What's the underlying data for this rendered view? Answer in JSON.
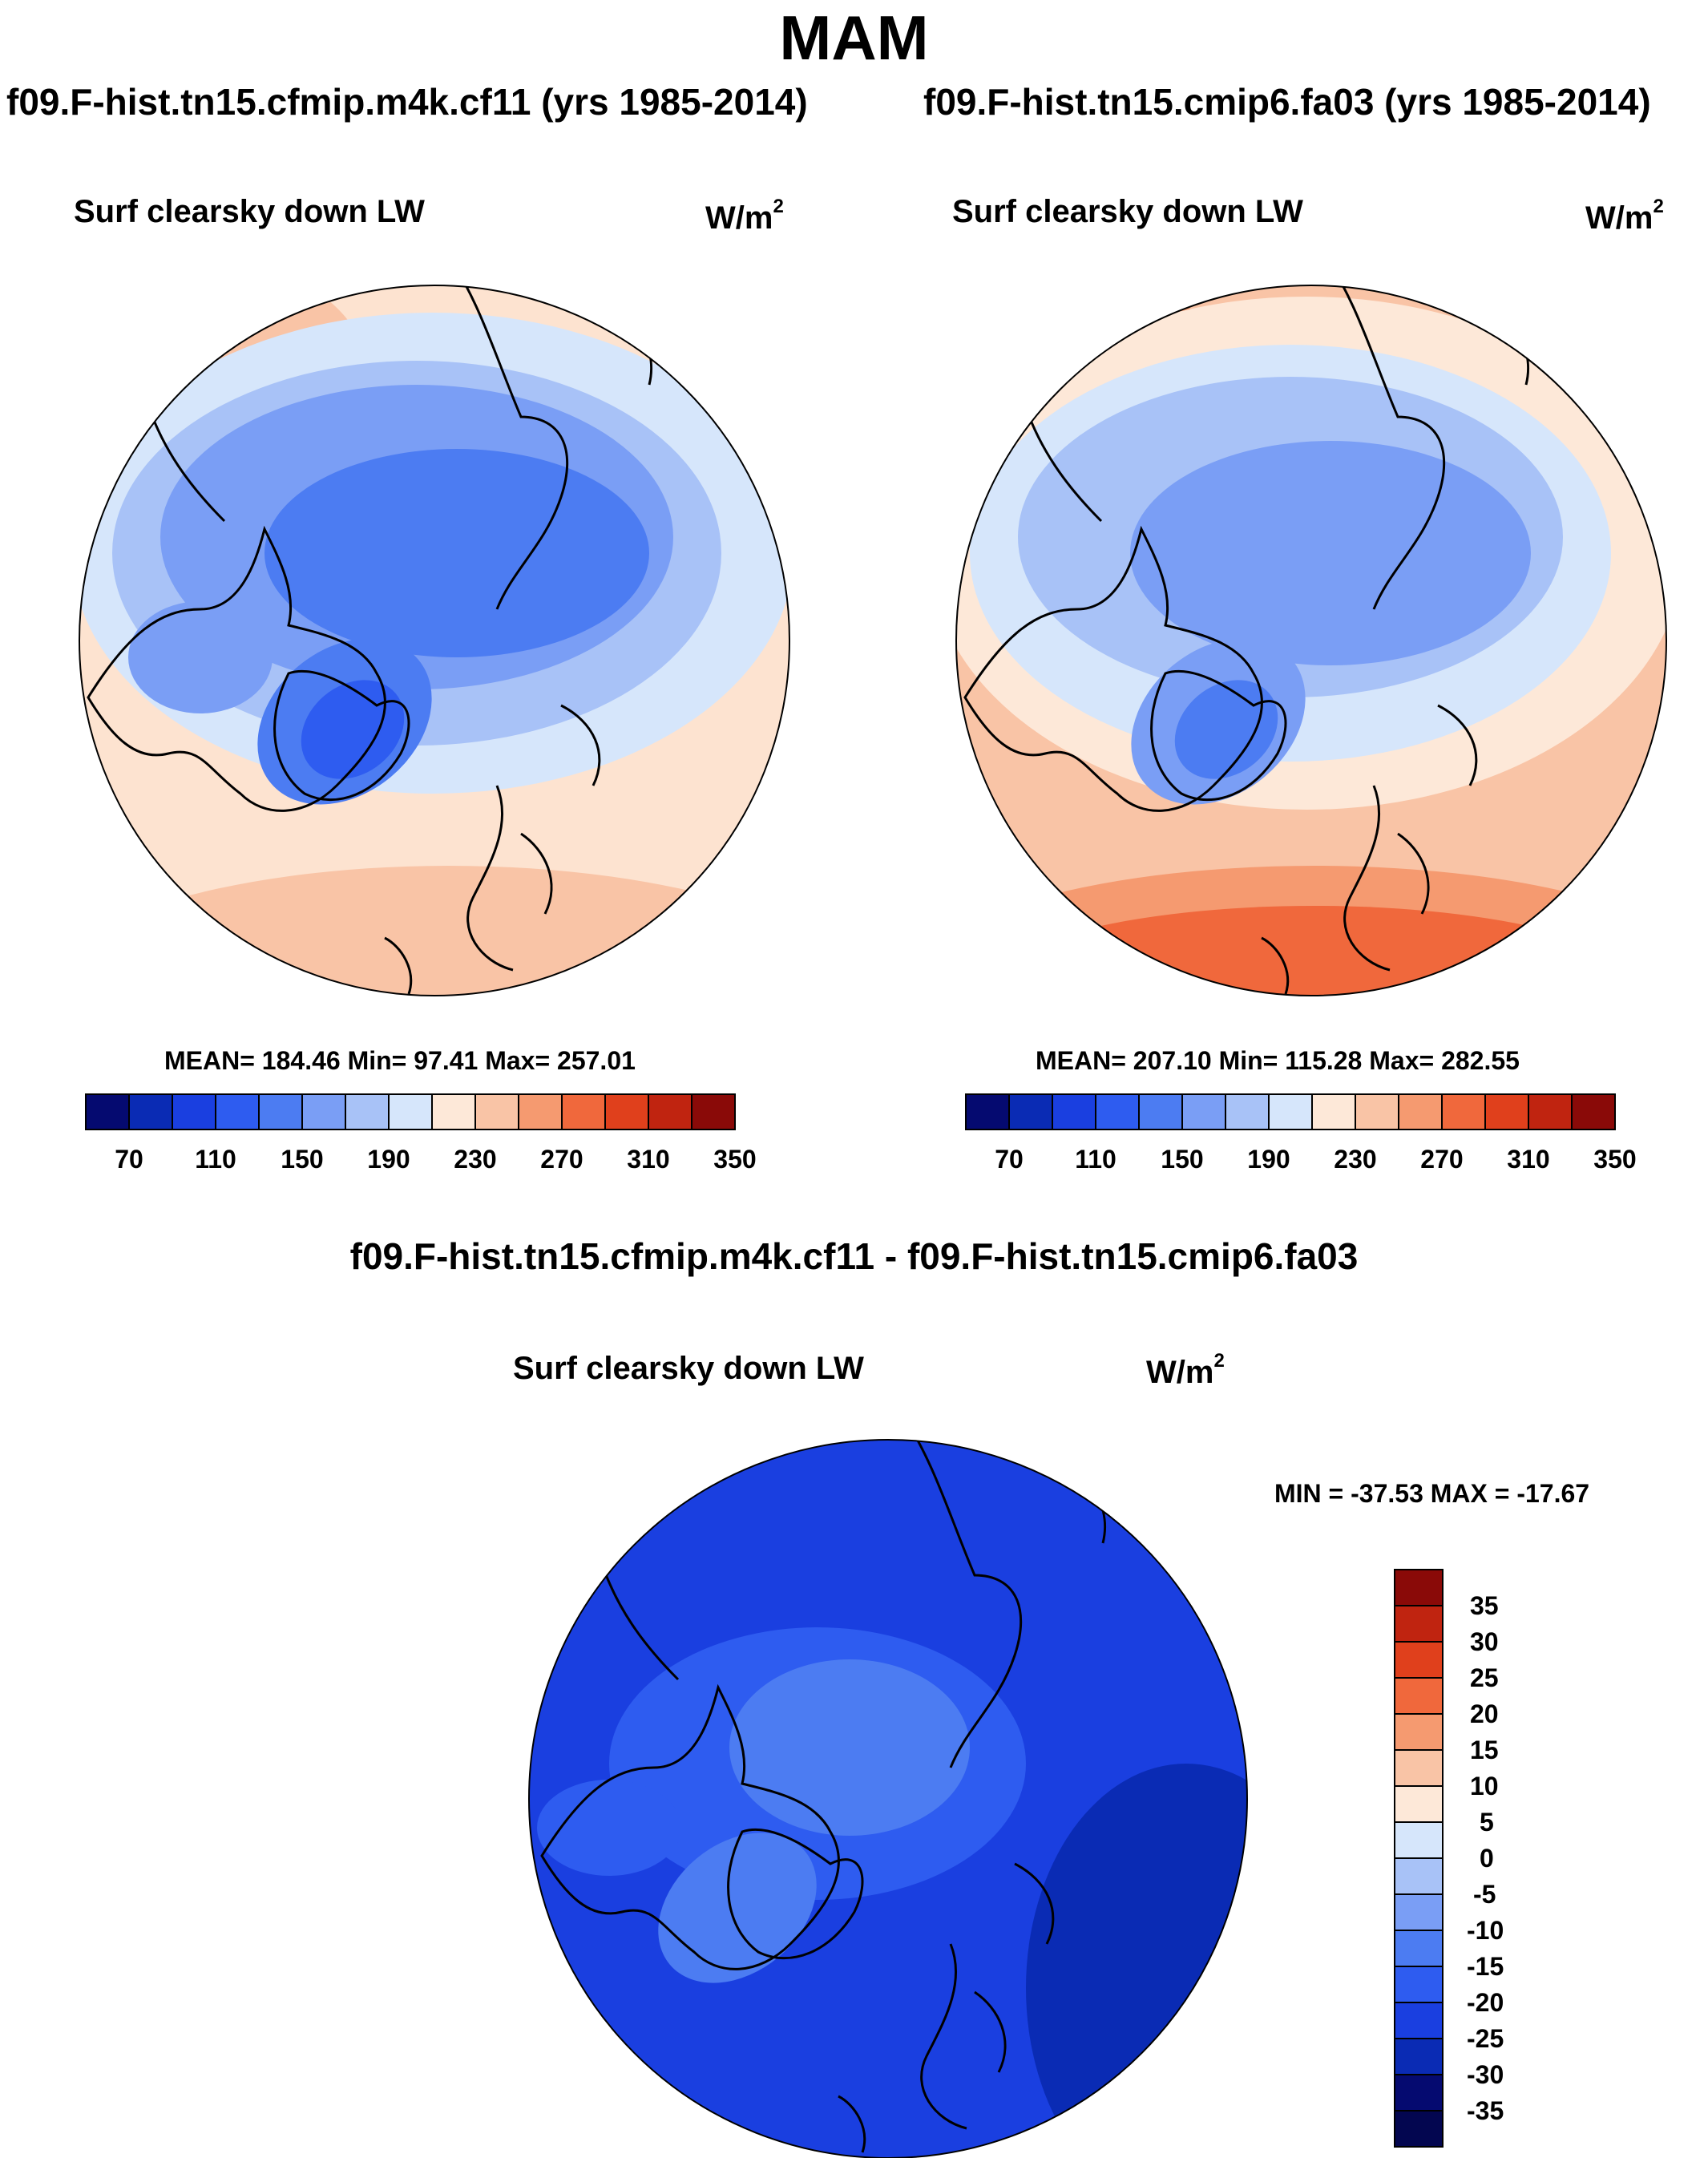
{
  "figure": {
    "season": "MAM"
  },
  "panels": {
    "left": {
      "case_title": "f09.F-hist.tn15.cfmip.m4k.cf11 (yrs 1985-2014)",
      "variable": "Surf clearsky down LW",
      "units": "W/m",
      "units_sup": "2",
      "stats": "MEAN= 184.46  Min=  97.41  Max= 257.01"
    },
    "right": {
      "case_title": "f09.F-hist.tn15.cmip6.fa03 (yrs 1985-2014)",
      "variable": "Surf clearsky down LW",
      "units": "W/m",
      "units_sup": "2",
      "stats": "MEAN= 207.10  Min= 115.28  Max= 282.55"
    },
    "diff": {
      "case_title": "f09.F-hist.tn15.cfmip.m4k.cf11 - f09.F-hist.tn15.cmip6.fa03",
      "variable": "Surf clearsky down LW",
      "units": "W/m",
      "units_sup": "2",
      "stats": "MIN = -37.53 MAX = -17.67"
    }
  },
  "colorbar_abs": {
    "labels": [
      "70",
      "110",
      "150",
      "190",
      "230",
      "270",
      "310",
      "350"
    ],
    "colors": [
      "#050a70",
      "#0a2bb4",
      "#1a3fe0",
      "#2e5cf0",
      "#4c7cf2",
      "#7a9ef5",
      "#a8c2f7",
      "#d6e6fb",
      "#fde8d8",
      "#f9c4a6",
      "#f59a70",
      "#f0683c",
      "#e0401c",
      "#c02410",
      "#8a0a08"
    ]
  },
  "colorbar_diff": {
    "labels": [
      "35",
      "30",
      "25",
      "20",
      "15",
      "10",
      "5",
      "0",
      "-5",
      "-10",
      "-15",
      "-20",
      "-25",
      "-30",
      "-35"
    ],
    "colors": [
      "#8a0a08",
      "#c02410",
      "#e0401c",
      "#f0683c",
      "#f59a70",
      "#f9c4a6",
      "#fde8d8",
      "#d6e6fb",
      "#a8c2f7",
      "#7a9ef5",
      "#4c7cf2",
      "#2e5cf0",
      "#1a3fe0",
      "#0a2bb4",
      "#050a70",
      "#030650"
    ]
  }
}
